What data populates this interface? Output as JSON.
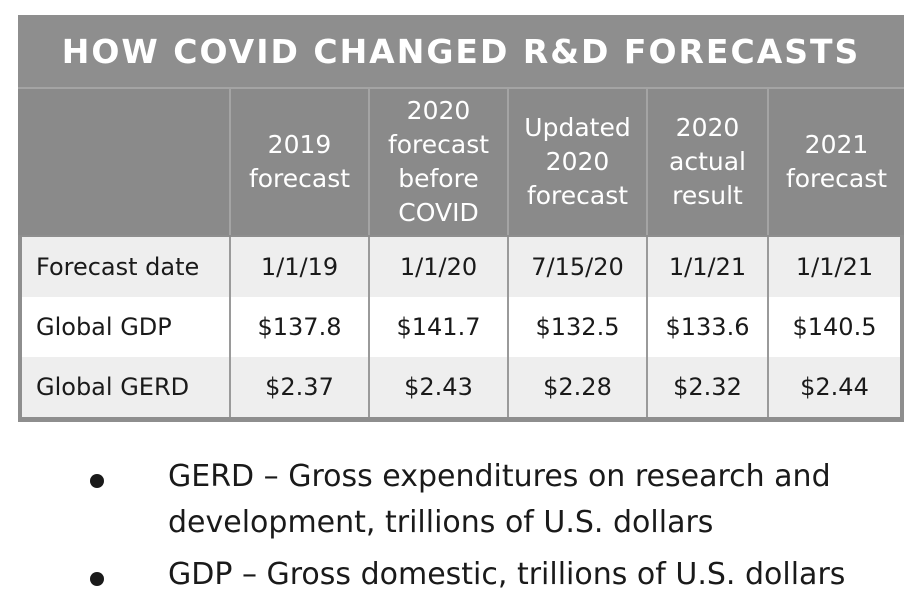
{
  "chart_data": {
    "type": "table",
    "title": "HOW COVID CHANGED R&D FORECASTS",
    "columns": [
      "",
      "2019\nforecast",
      "2020\nforecast\nbefore\nCOVID",
      "Updated\n2020\nforecast",
      "2020\nactual\nresult",
      "2021\nforecast"
    ],
    "rows": [
      {
        "label": "Forecast date",
        "values": [
          "1/1/19",
          "1/1/20",
          "7/15/20",
          "1/1/21",
          "1/1/21"
        ]
      },
      {
        "label": "Global GDP",
        "values": [
          "$137.8",
          "$141.7",
          "$132.5",
          "$133.6",
          "$140.5"
        ]
      },
      {
        "label": "Global GERD",
        "values": [
          "$2.37",
          "$2.43",
          "$2.28",
          "$2.32",
          "$2.44"
        ]
      }
    ]
  },
  "notes": [
    "GERD – Gross expenditures on research and\ndevelopment, trillions of U.S. dollars",
    "GDP – Gross domestic, trillions of U.S. dollars"
  ],
  "colors": {
    "frame": "#8e8e8e",
    "header_text": "#ffffff",
    "row_shade": "#eeeeee",
    "row_plain": "#ffffff",
    "text": "#1a1a1a"
  }
}
